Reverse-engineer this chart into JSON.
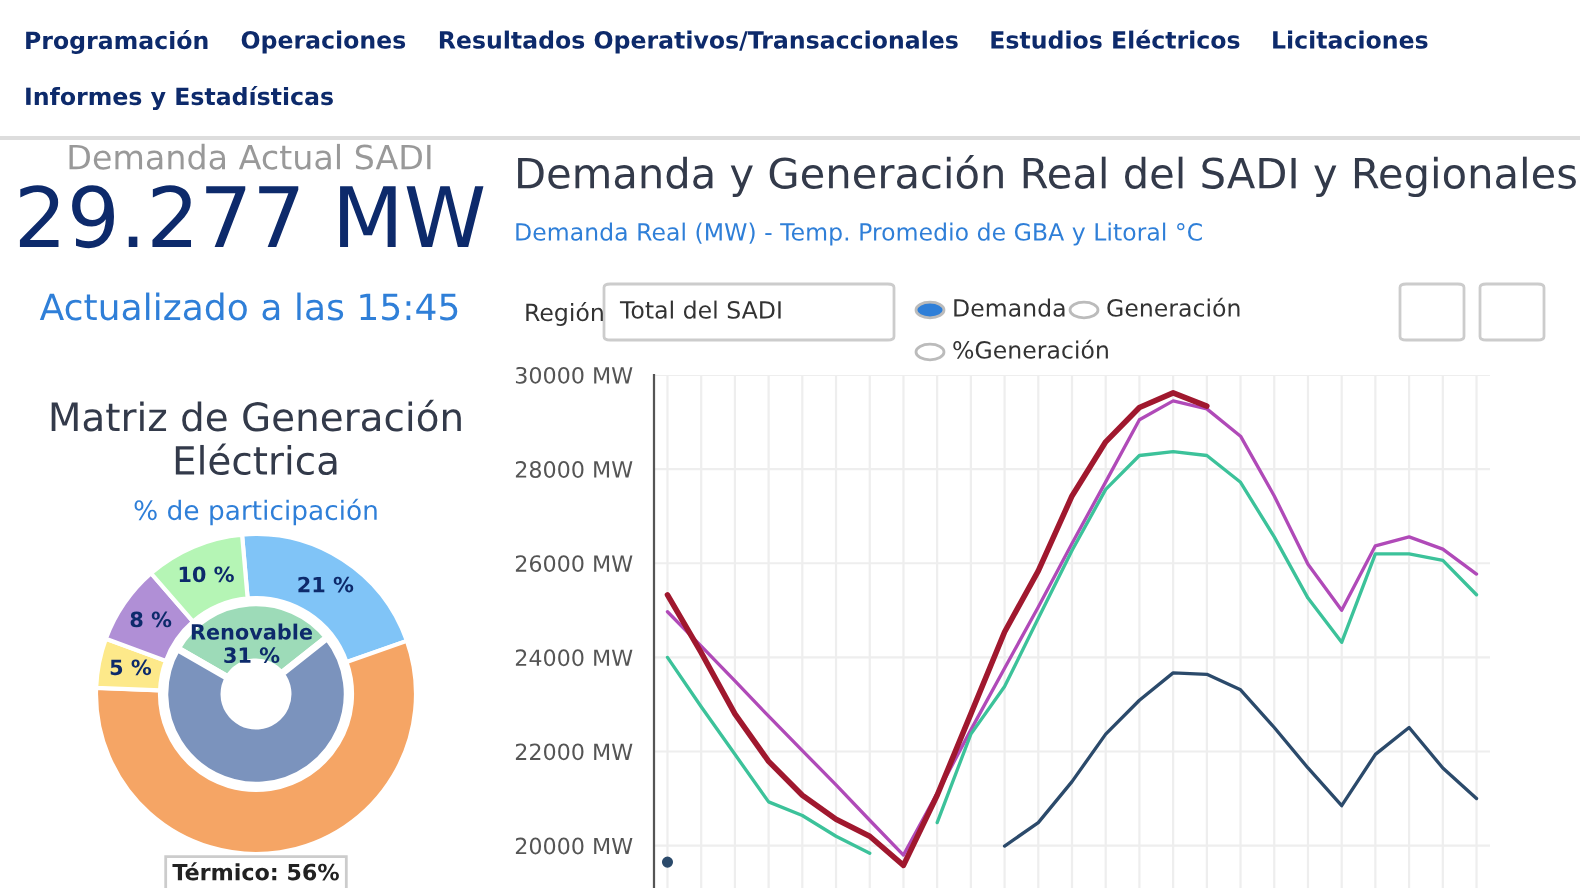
{
  "chart_data": [
    {
      "type": "other",
      "title": "Demanda Actual SADI",
      "annotations": [
        "29.277 MW",
        "Actualizado a las 15:45",
        "Programación",
        "Operaciones",
        "Resultados Operativos/Transaccionales",
        "Estudios Eléctricos",
        "Licitaciones",
        "Informes y Estadísticas"
      ]
    },
    {
      "type": "donut",
      "title": "Matriz de Generación Eléctrica",
      "subtitle": "% de participación",
      "annotations": [
        "Térmico: 56%"
      ],
      "series": [
        {
          "values": [
            21,
            56,
            5,
            8,
            10
          ],
          "colors": [
            "#80c4f7",
            "#f5a565",
            "#fde98a",
            "#b08fd6",
            "#b5f5b5"
          ],
          "value_labels": [
            "21 %",
            null,
            "5 %",
            "8 %",
            "10 %"
          ]
        },
        {
          "values": [
            31,
            69
          ],
          "colors": [
            "#9ddbb8",
            "#7b93bd"
          ],
          "value_labels": [
            "Renovable\n31 %",
            null
          ]
        }
      ]
    },
    {
      "type": "line",
      "title": "Demanda y Generación Real del SADI y Regionales",
      "subtitle": "Demanda Real (MW) - Temp. Promedio de GBA y Litoral °C",
      "categories": [
        null,
        null,
        null,
        null,
        null,
        null,
        null,
        null,
        null,
        null,
        null,
        null,
        null,
        null,
        null,
        null,
        null,
        null,
        null,
        null,
        null,
        null,
        null,
        null,
        null
      ],
      "series": [
        {
          "color": "#b04ab8",
          "values": [
            24970,
            24240,
            23500,
            22750,
            22020,
            21290,
            20540,
            19800,
            21110,
            22460,
            23770,
            25070,
            26420,
            27730,
            29050,
            29450,
            29280,
            28700,
            27430,
            25980,
            25000,
            26370,
            26560,
            26300,
            25770
          ]
        },
        {
          "color": "#3cc29a",
          "values": [
            24000,
            22950,
            21940,
            20930,
            20640,
            20200,
            19840,
            null,
            20490,
            22370,
            23380,
            24830,
            26270,
            27570,
            28290,
            28370,
            28290,
            27720,
            26560,
            25260,
            24320,
            26200,
            26200,
            26060,
            25330
          ]
        },
        {
          "color": "#2b4a6b",
          "values": [
            19650,
            null,
            null,
            null,
            null,
            null,
            null,
            null,
            null,
            null,
            19990,
            20490,
            21360,
            22370,
            23090,
            23670,
            23640,
            23310,
            22510,
            21650,
            20850,
            21940,
            22510,
            21650,
            21000
          ]
        },
        {
          "color": "#a0182e",
          "values": [
            25330,
            24100,
            22800,
            21790,
            21070,
            20560,
            20200,
            19580,
            21070,
            22800,
            24540,
            25840,
            27430,
            28580,
            29310,
            29620,
            29340,
            null,
            null,
            null,
            null,
            null,
            null,
            null,
            null
          ]
        }
      ],
      "ylim": [
        19100,
        30000
      ],
      "yticks": [
        {
          "value": 20000,
          "label": "20000 MW"
        },
        {
          "value": 22000,
          "label": "22000 MW"
        },
        {
          "value": 24000,
          "label": "24000 MW"
        },
        {
          "value": 26000,
          "label": "26000 MW"
        },
        {
          "value": 28000,
          "label": "28000 MW"
        },
        {
          "value": 30000,
          "label": "30000 MW"
        }
      ],
      "grid": true,
      "tick_labels": "y",
      "marker": "none",
      "line_style": "solid",
      "annotations": [
        "Región",
        "Total del SADI",
        "Demanda",
        "Generación",
        "%Generación"
      ]
    }
  ]
}
